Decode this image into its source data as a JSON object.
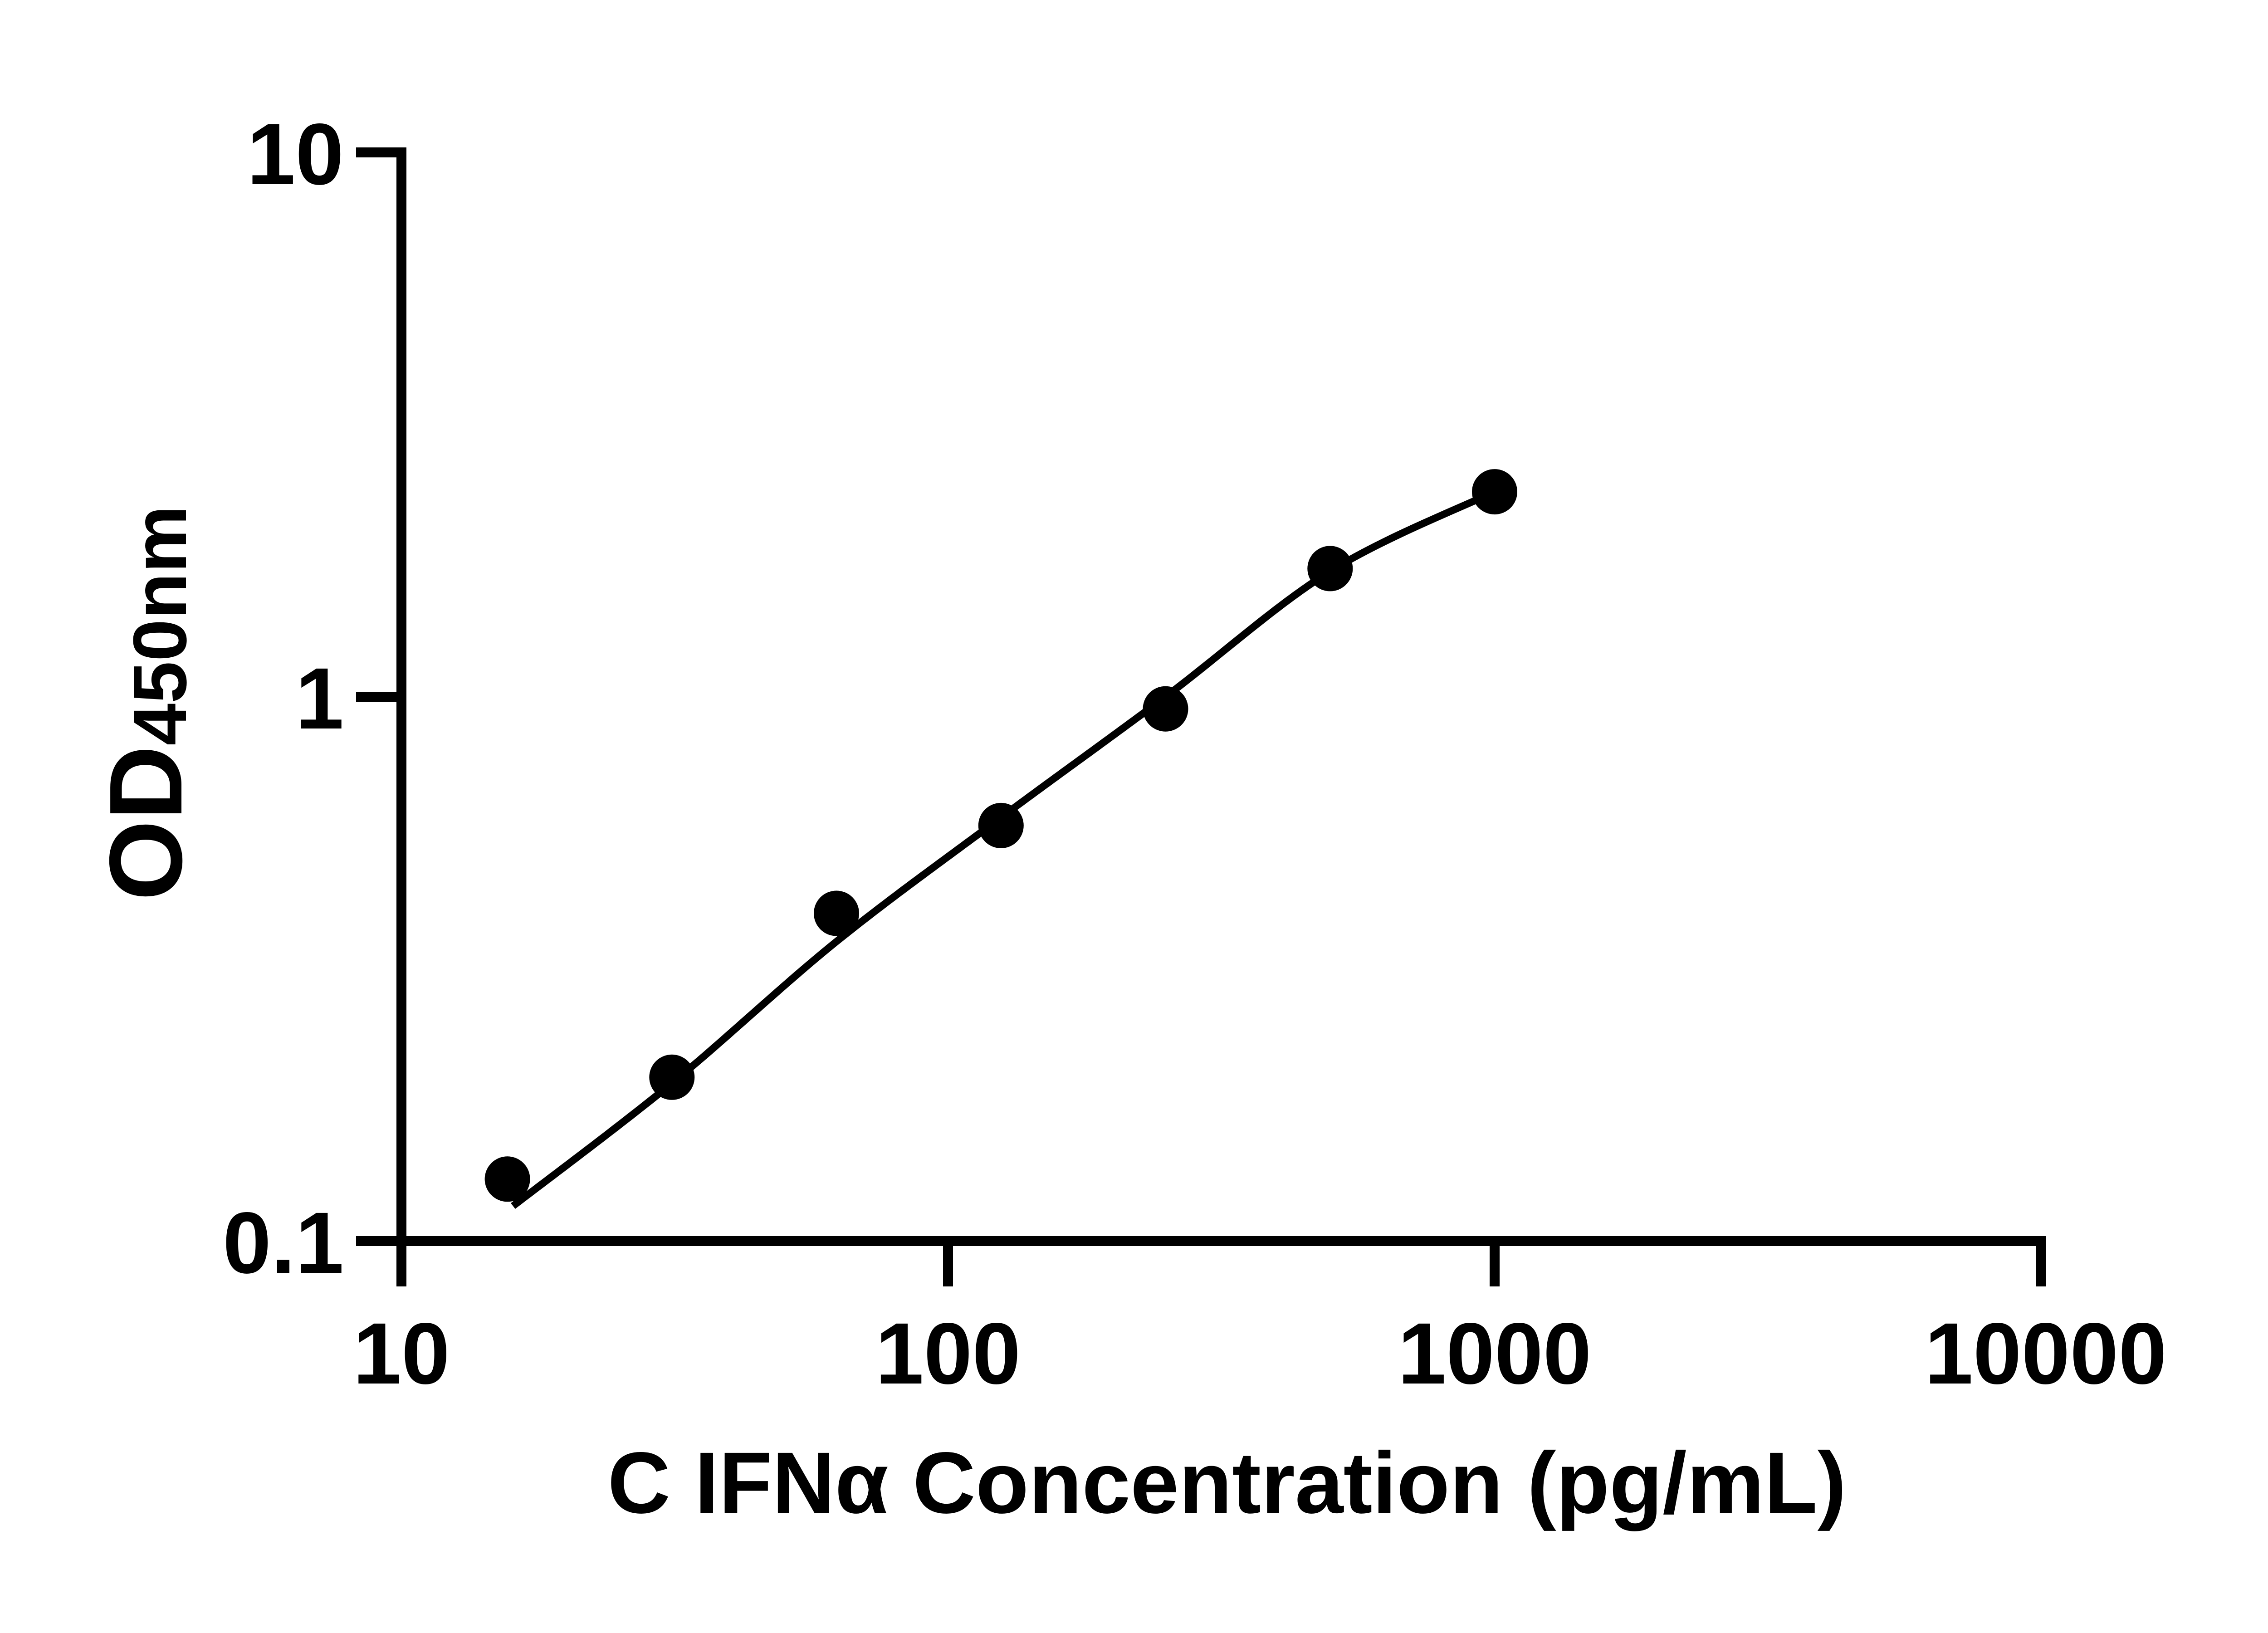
{
  "figure": {
    "background": "#ffffff",
    "ink_color": "#000000"
  },
  "chart_data": {
    "type": "scatter",
    "title": "",
    "xlabel": "C IFNα Concentration (pg/mL)",
    "ylabel": {
      "main": "OD",
      "sub": "450nm"
    },
    "x_scale": "log10",
    "y_scale": "log10",
    "xlim": [
      10,
      10000
    ],
    "ylim": [
      0.1,
      10
    ],
    "grid": false,
    "legend": false,
    "x_ticks": [
      {
        "value": 10,
        "label": "10"
      },
      {
        "value": 100,
        "label": "100"
      },
      {
        "value": 1000,
        "label": "1000"
      },
      {
        "value": 10000,
        "label": "10000"
      }
    ],
    "y_ticks": [
      {
        "value": 10,
        "label": "10"
      },
      {
        "value": 1,
        "label": "1"
      },
      {
        "value": 0.1,
        "label": "0.1"
      }
    ],
    "series": [
      {
        "name": "standard-curve-points",
        "marker": "filled-circle",
        "color": "#000000",
        "points": [
          {
            "x": 15.625,
            "y": 0.13
          },
          {
            "x": 31.25,
            "y": 0.2
          },
          {
            "x": 62.5,
            "y": 0.4
          },
          {
            "x": 125,
            "y": 0.58
          },
          {
            "x": 250,
            "y": 0.95
          },
          {
            "x": 500,
            "y": 1.72
          },
          {
            "x": 1000,
            "y": 2.38
          }
        ]
      }
    ],
    "fit_curve": {
      "name": "four-parameter-fit",
      "color": "#000000",
      "anchors": [
        [
          16,
          0.116
        ],
        [
          31.25,
          0.195
        ],
        [
          62.5,
          0.355
        ],
        [
          125,
          0.6
        ],
        [
          250,
          1.0
        ],
        [
          500,
          1.7
        ],
        [
          1000,
          2.38
        ]
      ]
    }
  }
}
